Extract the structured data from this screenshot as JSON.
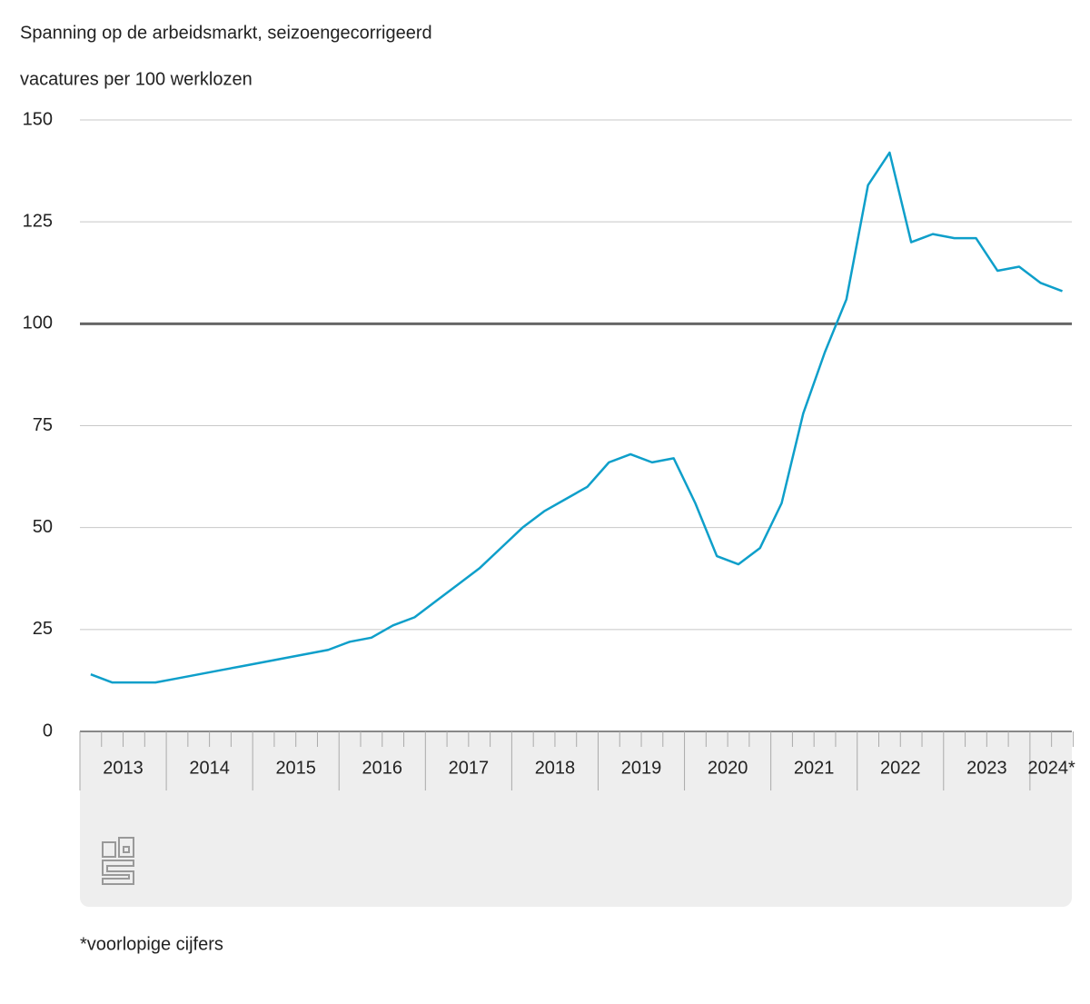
{
  "chart_data": {
    "type": "line",
    "title": "Spanning op de arbeidsmarkt, seizoengecorrigeerd",
    "y_label": "vacatures per 100 werklozen",
    "categories": [
      "2013",
      null,
      null,
      null,
      "2014",
      null,
      null,
      null,
      "2015",
      null,
      null,
      null,
      "2016",
      null,
      null,
      null,
      "2017",
      null,
      null,
      null,
      "2018",
      null,
      null,
      null,
      "2019",
      null,
      null,
      null,
      "2020",
      null,
      null,
      null,
      "2021",
      null,
      null,
      null,
      "2022",
      null,
      null,
      null,
      "2023",
      null,
      null,
      null,
      "2024*",
      null
    ],
    "series": [
      {
        "name": "Spanning",
        "color": "#0e9fca",
        "values": [
          14,
          12,
          12,
          12,
          13,
          14,
          15,
          16,
          17,
          18,
          19,
          20,
          22,
          23,
          26,
          28,
          32,
          36,
          40,
          45,
          50,
          54,
          57,
          60,
          66,
          68,
          66,
          67,
          56,
          43,
          41,
          45,
          56,
          78,
          93,
          106,
          134,
          142,
          120,
          122,
          121,
          121,
          113,
          114,
          110,
          108
        ]
      }
    ],
    "reference_line": 100,
    "ylim": [
      0,
      150
    ],
    "yticks": [
      0,
      25,
      50,
      75,
      100,
      125,
      150
    ],
    "grid": true,
    "footnote": "*voorlopige cijfers"
  }
}
